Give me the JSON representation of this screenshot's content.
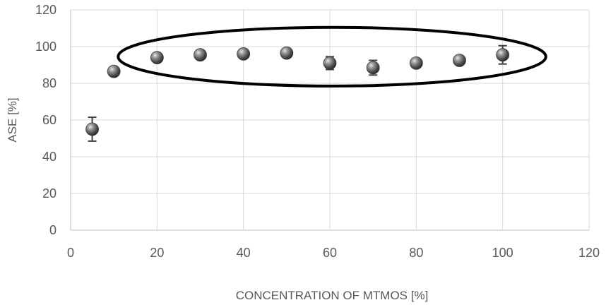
{
  "chart_data": {
    "type": "scatter",
    "title": "",
    "xlabel": "CONCENTRATION OF MTMOS [%]",
    "ylabel": "ASE [%]",
    "xlim": [
      0,
      120
    ],
    "ylim": [
      0,
      120
    ],
    "xticks": [
      0,
      20,
      40,
      60,
      80,
      100,
      120
    ],
    "yticks": [
      0,
      20,
      40,
      60,
      80,
      100,
      120
    ],
    "grid": true,
    "series": [
      {
        "points": [
          {
            "x": 5,
            "y": 55,
            "err": 6.5
          },
          {
            "x": 10,
            "y": 86.5,
            "err": 2
          },
          {
            "x": 20,
            "y": 94,
            "err": 1.5
          },
          {
            "x": 30,
            "y": 95.5,
            "err": 1
          },
          {
            "x": 40,
            "y": 96,
            "err": 1
          },
          {
            "x": 50,
            "y": 96.5,
            "err": 1
          },
          {
            "x": 60,
            "y": 91,
            "err": 3.5
          },
          {
            "x": 70,
            "y": 88.5,
            "err": 4
          },
          {
            "x": 80,
            "y": 91,
            "err": 1.5
          },
          {
            "x": 90,
            "y": 92.5,
            "err": 1.5
          },
          {
            "x": 100,
            "y": 95.5,
            "err": 5
          }
        ]
      }
    ],
    "annotations": [
      {
        "type": "ellipse",
        "x_range": [
          11,
          110
        ],
        "y_range": [
          78.5,
          110.5
        ]
      }
    ],
    "colors": {
      "marker": "#6e6e6e",
      "grid": "#d9d9d9",
      "text": "#595959",
      "annotation": "#000000"
    }
  }
}
